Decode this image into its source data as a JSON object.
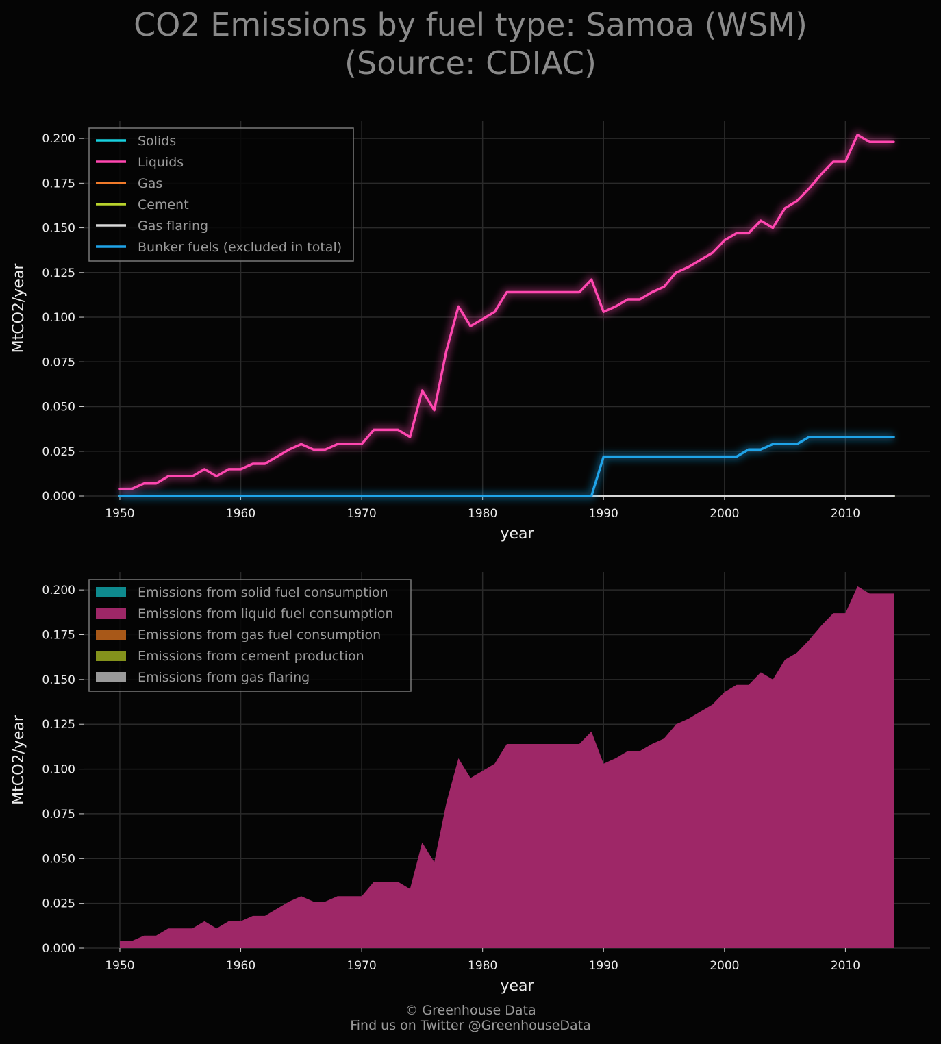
{
  "title": {
    "line1": "CO2 Emissions by fuel type: Samoa (WSM)",
    "line2": "(Source: CDIAC)"
  },
  "footer": {
    "line1": "© Greenhouse Data",
    "line2": "Find us on Twitter @GreenhouseData"
  },
  "colors": {
    "background": "#050505",
    "solids": "#18d0de",
    "liquids": "#ff47b0",
    "gas": "#f07a2a",
    "cement": "#b8d22c",
    "gas_flaring": "#d8d8d8",
    "bunker": "#1fa3e8",
    "area_solid": "#0e8a8e",
    "area_liquid": "#9e2767",
    "area_gas": "#a85818",
    "area_cement": "#84921c",
    "area_flaring": "#9a9a9a"
  },
  "chart_data": [
    {
      "type": "line",
      "xlabel": "year",
      "ylabel": "MtCO2/year",
      "xlim": [
        1947,
        2017
      ],
      "ylim": [
        0,
        0.21
      ],
      "xticks": [
        "1950",
        "1960",
        "1970",
        "1980",
        "1990",
        "2000",
        "2010"
      ],
      "yticks": [
        "0.000",
        "0.025",
        "0.050",
        "0.075",
        "0.100",
        "0.125",
        "0.150",
        "0.175",
        "0.200"
      ],
      "grid": true,
      "legend_position": "top-left",
      "x": [
        1950,
        1951,
        1952,
        1953,
        1954,
        1955,
        1956,
        1957,
        1958,
        1959,
        1960,
        1961,
        1962,
        1963,
        1964,
        1965,
        1966,
        1967,
        1968,
        1969,
        1970,
        1971,
        1972,
        1973,
        1974,
        1975,
        1976,
        1977,
        1978,
        1979,
        1980,
        1981,
        1982,
        1983,
        1984,
        1985,
        1986,
        1987,
        1988,
        1989,
        1990,
        1991,
        1992,
        1993,
        1994,
        1995,
        1996,
        1997,
        1998,
        1999,
        2000,
        2001,
        2002,
        2003,
        2004,
        2005,
        2006,
        2007,
        2008,
        2009,
        2010,
        2011,
        2012,
        2013,
        2014
      ],
      "series": [
        {
          "name": "Solids",
          "color_key": "solids",
          "values": [
            0,
            0,
            0,
            0,
            0,
            0,
            0,
            0,
            0,
            0,
            0,
            0,
            0,
            0,
            0,
            0,
            0,
            0,
            0,
            0,
            0,
            0,
            0,
            0,
            0,
            0,
            0,
            0,
            0,
            0,
            0,
            0,
            0,
            0,
            0,
            0,
            0,
            0,
            0,
            0,
            0,
            0,
            0,
            0,
            0,
            0,
            0,
            0,
            0,
            0,
            0,
            0,
            0,
            0,
            0,
            0,
            0,
            0,
            0,
            0,
            0,
            0,
            0,
            0,
            0
          ]
        },
        {
          "name": "Liquids",
          "color_key": "liquids",
          "values": [
            0.004,
            0.004,
            0.007,
            0.007,
            0.011,
            0.011,
            0.011,
            0.015,
            0.011,
            0.015,
            0.015,
            0.018,
            0.018,
            0.022,
            0.026,
            0.029,
            0.026,
            0.026,
            0.029,
            0.029,
            0.029,
            0.037,
            0.037,
            0.037,
            0.033,
            0.059,
            0.048,
            0.081,
            0.106,
            0.095,
            0.099,
            0.103,
            0.114,
            0.114,
            0.114,
            0.114,
            0.114,
            0.114,
            0.114,
            0.121,
            0.103,
            0.106,
            0.11,
            0.11,
            0.114,
            0.117,
            0.125,
            0.128,
            0.132,
            0.136,
            0.143,
            0.147,
            0.147,
            0.154,
            0.15,
            0.161,
            0.165,
            0.172,
            0.18,
            0.187,
            0.187,
            0.202,
            0.198,
            0.198,
            0.198
          ]
        },
        {
          "name": "Gas",
          "color_key": "gas",
          "values": [
            0,
            0,
            0,
            0,
            0,
            0,
            0,
            0,
            0,
            0,
            0,
            0,
            0,
            0,
            0,
            0,
            0,
            0,
            0,
            0,
            0,
            0,
            0,
            0,
            0,
            0,
            0,
            0,
            0,
            0,
            0,
            0,
            0,
            0,
            0,
            0,
            0,
            0,
            0,
            0,
            0,
            0,
            0,
            0,
            0,
            0,
            0,
            0,
            0,
            0,
            0,
            0,
            0,
            0,
            0,
            0,
            0,
            0,
            0,
            0,
            0,
            0,
            0,
            0,
            0
          ]
        },
        {
          "name": "Cement",
          "color_key": "cement",
          "values": [
            0,
            0,
            0,
            0,
            0,
            0,
            0,
            0,
            0,
            0,
            0,
            0,
            0,
            0,
            0,
            0,
            0,
            0,
            0,
            0,
            0,
            0,
            0,
            0,
            0,
            0,
            0,
            0,
            0,
            0,
            0,
            0,
            0,
            0,
            0,
            0,
            0,
            0,
            0,
            0,
            0,
            0,
            0,
            0,
            0,
            0,
            0,
            0,
            0,
            0,
            0,
            0,
            0,
            0,
            0,
            0,
            0,
            0,
            0,
            0,
            0,
            0,
            0,
            0,
            0
          ]
        },
        {
          "name": "Gas flaring",
          "color_key": "gas_flaring",
          "values": [
            0,
            0,
            0,
            0,
            0,
            0,
            0,
            0,
            0,
            0,
            0,
            0,
            0,
            0,
            0,
            0,
            0,
            0,
            0,
            0,
            0,
            0,
            0,
            0,
            0,
            0,
            0,
            0,
            0,
            0,
            0,
            0,
            0,
            0,
            0,
            0,
            0,
            0,
            0,
            0,
            0,
            0,
            0,
            0,
            0,
            0,
            0,
            0,
            0,
            0,
            0,
            0,
            0,
            0,
            0,
            0,
            0,
            0,
            0,
            0,
            0,
            0,
            0,
            0,
            0
          ]
        },
        {
          "name": "Bunker fuels (excluded in total)",
          "color_key": "bunker",
          "values": [
            0,
            0,
            0,
            0,
            0,
            0,
            0,
            0,
            0,
            0,
            0,
            0,
            0,
            0,
            0,
            0,
            0,
            0,
            0,
            0,
            0,
            0,
            0,
            0,
            0,
            0,
            0,
            0,
            0,
            0,
            0,
            0,
            0,
            0,
            0,
            0,
            0,
            0,
            0,
            0,
            0.022,
            0.022,
            0.022,
            0.022,
            0.022,
            0.022,
            0.022,
            0.022,
            0.022,
            0.022,
            0.022,
            0.022,
            0.026,
            0.026,
            0.029,
            0.029,
            0.029,
            0.033,
            0.033,
            0.033,
            0.033,
            0.033,
            0.033,
            0.033,
            0.033
          ]
        }
      ]
    },
    {
      "type": "area",
      "stacked": true,
      "xlabel": "year",
      "ylabel": "MtCO2/year",
      "xlim": [
        1947,
        2017
      ],
      "ylim": [
        0,
        0.21
      ],
      "xticks": [
        "1950",
        "1960",
        "1970",
        "1980",
        "1990",
        "2000",
        "2010"
      ],
      "yticks": [
        "0.000",
        "0.025",
        "0.050",
        "0.075",
        "0.100",
        "0.125",
        "0.150",
        "0.175",
        "0.200"
      ],
      "grid": true,
      "legend_position": "top-left",
      "x": [
        1950,
        1951,
        1952,
        1953,
        1954,
        1955,
        1956,
        1957,
        1958,
        1959,
        1960,
        1961,
        1962,
        1963,
        1964,
        1965,
        1966,
        1967,
        1968,
        1969,
        1970,
        1971,
        1972,
        1973,
        1974,
        1975,
        1976,
        1977,
        1978,
        1979,
        1980,
        1981,
        1982,
        1983,
        1984,
        1985,
        1986,
        1987,
        1988,
        1989,
        1990,
        1991,
        1992,
        1993,
        1994,
        1995,
        1996,
        1997,
        1998,
        1999,
        2000,
        2001,
        2002,
        2003,
        2004,
        2005,
        2006,
        2007,
        2008,
        2009,
        2010,
        2011,
        2012,
        2013,
        2014
      ],
      "series": [
        {
          "name": "Emissions from solid fuel consumption",
          "color_key": "area_solid",
          "values": [
            0,
            0,
            0,
            0,
            0,
            0,
            0,
            0,
            0,
            0,
            0,
            0,
            0,
            0,
            0,
            0,
            0,
            0,
            0,
            0,
            0,
            0,
            0,
            0,
            0,
            0,
            0,
            0,
            0,
            0,
            0,
            0,
            0,
            0,
            0,
            0,
            0,
            0,
            0,
            0,
            0,
            0,
            0,
            0,
            0,
            0,
            0,
            0,
            0,
            0,
            0,
            0,
            0,
            0,
            0,
            0,
            0,
            0,
            0,
            0,
            0,
            0,
            0,
            0,
            0
          ]
        },
        {
          "name": "Emissions from liquid fuel consumption",
          "color_key": "area_liquid",
          "values": [
            0.004,
            0.004,
            0.007,
            0.007,
            0.011,
            0.011,
            0.011,
            0.015,
            0.011,
            0.015,
            0.015,
            0.018,
            0.018,
            0.022,
            0.026,
            0.029,
            0.026,
            0.026,
            0.029,
            0.029,
            0.029,
            0.037,
            0.037,
            0.037,
            0.033,
            0.059,
            0.048,
            0.081,
            0.106,
            0.095,
            0.099,
            0.103,
            0.114,
            0.114,
            0.114,
            0.114,
            0.114,
            0.114,
            0.114,
            0.121,
            0.103,
            0.106,
            0.11,
            0.11,
            0.114,
            0.117,
            0.125,
            0.128,
            0.132,
            0.136,
            0.143,
            0.147,
            0.147,
            0.154,
            0.15,
            0.161,
            0.165,
            0.172,
            0.18,
            0.187,
            0.187,
            0.202,
            0.198,
            0.198,
            0.198
          ]
        },
        {
          "name": "Emissions from gas fuel consumption",
          "color_key": "area_gas",
          "values": [
            0,
            0,
            0,
            0,
            0,
            0,
            0,
            0,
            0,
            0,
            0,
            0,
            0,
            0,
            0,
            0,
            0,
            0,
            0,
            0,
            0,
            0,
            0,
            0,
            0,
            0,
            0,
            0,
            0,
            0,
            0,
            0,
            0,
            0,
            0,
            0,
            0,
            0,
            0,
            0,
            0,
            0,
            0,
            0,
            0,
            0,
            0,
            0,
            0,
            0,
            0,
            0,
            0,
            0,
            0,
            0,
            0,
            0,
            0,
            0,
            0,
            0,
            0,
            0,
            0
          ]
        },
        {
          "name": "Emissions from cement production",
          "color_key": "area_cement",
          "values": [
            0,
            0,
            0,
            0,
            0,
            0,
            0,
            0,
            0,
            0,
            0,
            0,
            0,
            0,
            0,
            0,
            0,
            0,
            0,
            0,
            0,
            0,
            0,
            0,
            0,
            0,
            0,
            0,
            0,
            0,
            0,
            0,
            0,
            0,
            0,
            0,
            0,
            0,
            0,
            0,
            0,
            0,
            0,
            0,
            0,
            0,
            0,
            0,
            0,
            0,
            0,
            0,
            0,
            0,
            0,
            0,
            0,
            0,
            0,
            0,
            0,
            0,
            0,
            0,
            0
          ]
        },
        {
          "name": "Emissions from gas flaring",
          "color_key": "area_flaring",
          "values": [
            0,
            0,
            0,
            0,
            0,
            0,
            0,
            0,
            0,
            0,
            0,
            0,
            0,
            0,
            0,
            0,
            0,
            0,
            0,
            0,
            0,
            0,
            0,
            0,
            0,
            0,
            0,
            0,
            0,
            0,
            0,
            0,
            0,
            0,
            0,
            0,
            0,
            0,
            0,
            0,
            0,
            0,
            0,
            0,
            0,
            0,
            0,
            0,
            0,
            0,
            0,
            0,
            0,
            0,
            0,
            0,
            0,
            0,
            0,
            0,
            0,
            0,
            0,
            0,
            0
          ]
        }
      ]
    }
  ]
}
